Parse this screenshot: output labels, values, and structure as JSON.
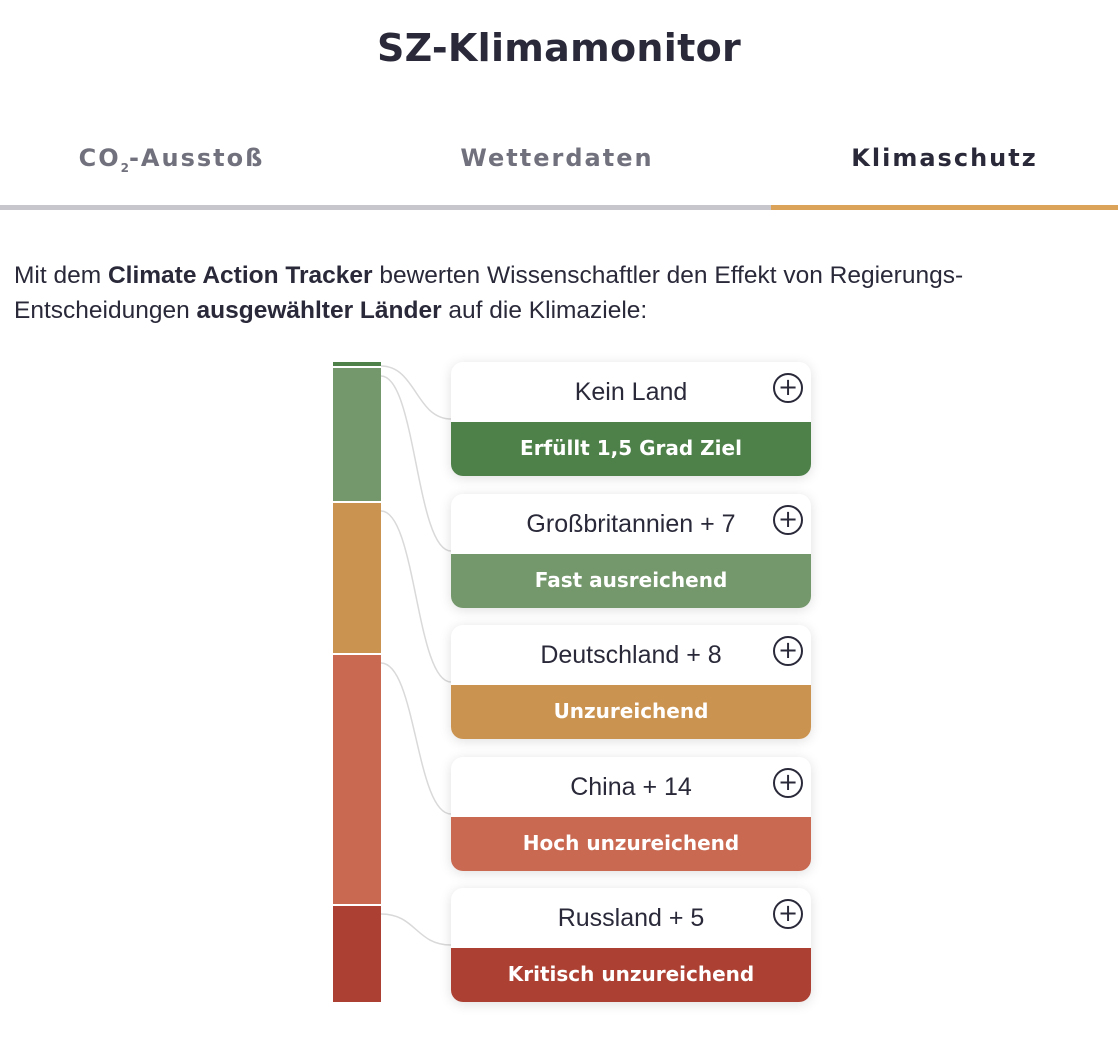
{
  "header": {
    "title": "SZ-Klimamonitor"
  },
  "tabs": [
    {
      "label_main": "CO",
      "label_sub": "2",
      "label_rest": "-Ausstoß",
      "active": false
    },
    {
      "label": "Wetterdaten",
      "active": false
    },
    {
      "label": "Klimaschutz",
      "active": true
    }
  ],
  "intro": {
    "part1": "Mit dem ",
    "bold1": "Climate Action Tracker",
    "part2": " bewerten Wissenschaftler den Effekt von Regierungs-Entscheidungen ",
    "bold2": "ausgewählter Länder",
    "part3": " auf die Klimaziele:"
  },
  "ratings": [
    {
      "country": "Kein Land",
      "rating": "Erfüllt 1,5 Grad Ziel",
      "count": 0,
      "color": "#4e8049"
    },
    {
      "country": "Großbritannien + 7",
      "rating": "Fast ausreichend",
      "count": 8,
      "color": "#74976b"
    },
    {
      "country": "Deutschland + 8",
      "rating": "Unzureichend",
      "count": 9,
      "color": "#cb9350"
    },
    {
      "country": "China + 14",
      "rating": "Hoch unzureichend",
      "count": 15,
      "color": "#c96951"
    },
    {
      "country": "Russland + 5",
      "rating": "Kritisch unzureichend",
      "count": 6,
      "color": "#ac4033"
    }
  ],
  "icons": {
    "expand": "plus-circle-icon"
  },
  "plus_glyph": "+"
}
